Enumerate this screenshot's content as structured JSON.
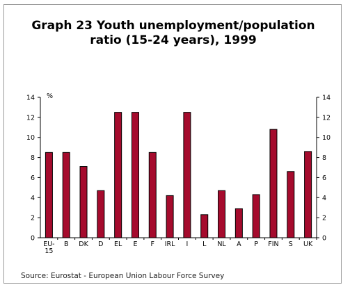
{
  "chart_data": {
    "type": "bar",
    "title": "Graph 23  Youth unemployment/population ratio (15-24 years), 1999",
    "title_lines": [
      "Graph 23  Youth unemployment/population",
      "ratio (15-24 years), 1999"
    ],
    "ylabel": "%",
    "xlabel": "",
    "ylim": [
      0,
      14
    ],
    "yticks": [
      0,
      2,
      4,
      6,
      8,
      10,
      12,
      14
    ],
    "categories": [
      "EU-15",
      "B",
      "DK",
      "D",
      "EL",
      "E",
      "F",
      "IRL",
      "I",
      "L",
      "NL",
      "A",
      "P",
      "FIN",
      "S",
      "UK"
    ],
    "category_labels": [
      [
        "EU-",
        "15"
      ],
      [
        "B"
      ],
      [
        "DK"
      ],
      [
        "D"
      ],
      [
        "EL"
      ],
      [
        "E"
      ],
      [
        "F"
      ],
      [
        "IRL"
      ],
      [
        "I"
      ],
      [
        "L"
      ],
      [
        "NL"
      ],
      [
        "A"
      ],
      [
        "P"
      ],
      [
        "FIN"
      ],
      [
        "S"
      ],
      [
        "UK"
      ]
    ],
    "values": [
      8.5,
      8.5,
      7.1,
      4.7,
      12.5,
      12.5,
      8.5,
      4.2,
      12.5,
      2.3,
      4.7,
      2.9,
      4.3,
      10.8,
      6.6,
      8.6
    ],
    "bar_color": "#a50b2d",
    "grid": false,
    "right_axis": true
  },
  "source": "Source: Eurostat - European Union Labour Force Survey"
}
